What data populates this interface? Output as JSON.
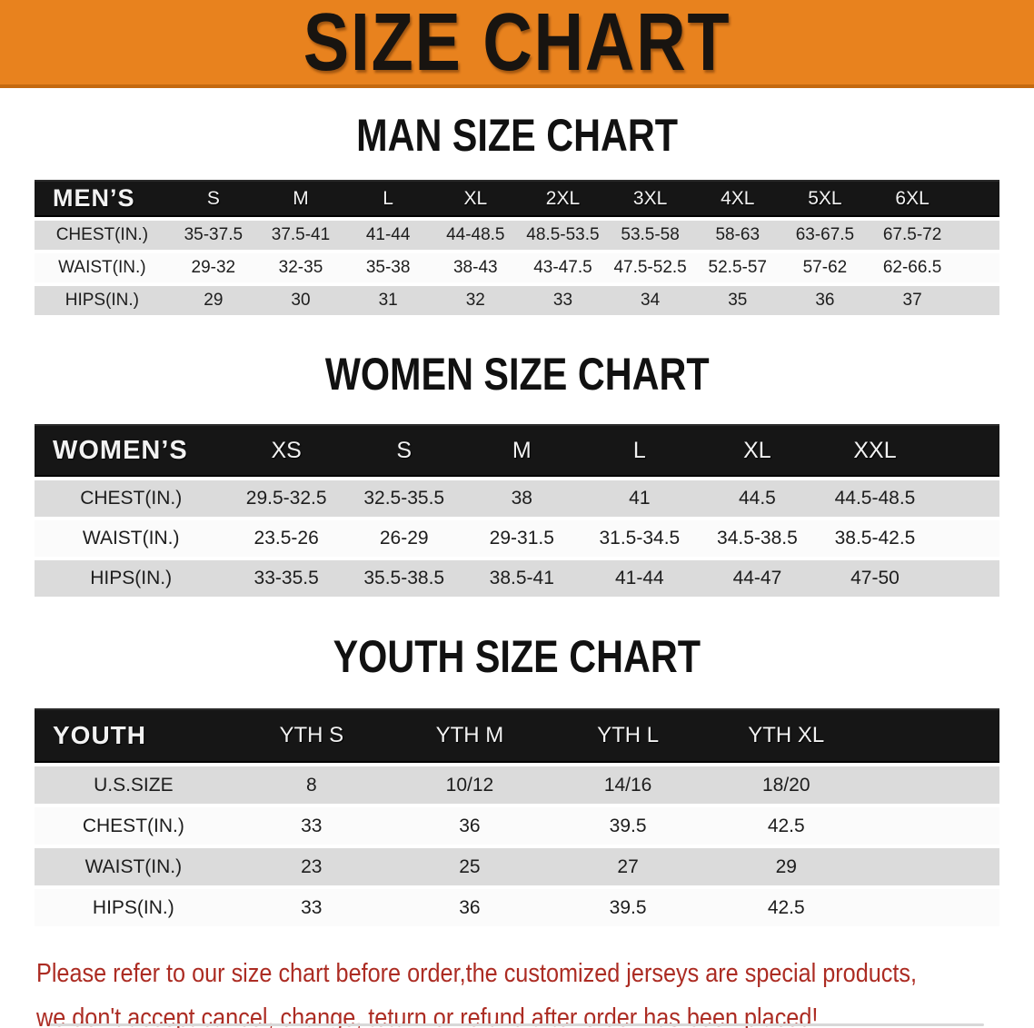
{
  "banner": {
    "title": "SIZE CHART",
    "bg_color": "#E8821E",
    "edge_color": "#C4690F"
  },
  "colors": {
    "table_header_black": "#161616",
    "row_gray": "#DBDBDB",
    "row_white": "#FBFBFB",
    "notice_red": "#AC2C23"
  },
  "sections": [
    {
      "heading": "MAN SIZE CHART",
      "corner_label": "MEN’S",
      "columns": [
        "S",
        "M",
        "L",
        "XL",
        "2XL",
        "3XL",
        "4XL",
        "5XL",
        "6XL"
      ],
      "rows": [
        {
          "label": "CHEST(IN.)",
          "values": [
            "35-37.5",
            "37.5-41",
            "41-44",
            "44-48.5",
            "48.5-53.5",
            "53.5-58",
            "58-63",
            "63-67.5",
            "67.5-72"
          ]
        },
        {
          "label": "WAIST(IN.)",
          "values": [
            "29-32",
            "32-35",
            "35-38",
            "38-43",
            "43-47.5",
            "47.5-52.5",
            "52.5-57",
            "57-62",
            "62-66.5"
          ]
        },
        {
          "label": "HIPS(IN.)",
          "values": [
            "29",
            "30",
            "31",
            "32",
            "33",
            "34",
            "35",
            "36",
            "37"
          ]
        }
      ]
    },
    {
      "heading": "WOMEN SIZE CHART",
      "corner_label": "WOMEN’S",
      "columns": [
        "XS",
        "S",
        "M",
        "L",
        "XL",
        "XXL"
      ],
      "rows": [
        {
          "label": "CHEST(IN.)",
          "values": [
            "29.5-32.5",
            "32.5-35.5",
            "38",
            "41",
            "44.5",
            "44.5-48.5"
          ]
        },
        {
          "label": "WAIST(IN.)",
          "values": [
            "23.5-26",
            "26-29",
            "29-31.5",
            "31.5-34.5",
            "34.5-38.5",
            "38.5-42.5"
          ]
        },
        {
          "label": "HIPS(IN.)",
          "values": [
            "33-35.5",
            "35.5-38.5",
            "38.5-41",
            "41-44",
            "44-47",
            "47-50"
          ]
        }
      ]
    },
    {
      "heading": "YOUTH SIZE CHART",
      "corner_label": "YOUTH",
      "columns": [
        "YTH S",
        "YTH M",
        "YTH L",
        "YTH XL"
      ],
      "rows": [
        {
          "label": "U.S.SIZE",
          "values": [
            "8",
            "10/12",
            "14/16",
            "18/20"
          ]
        },
        {
          "label": "CHEST(IN.)",
          "values": [
            "33",
            "36",
            "39.5",
            "42.5"
          ]
        },
        {
          "label": "WAIST(IN.)",
          "values": [
            "23",
            "25",
            "27",
            "29"
          ]
        },
        {
          "label": "HIPS(IN.)",
          "values": [
            "33",
            "36",
            "39.5",
            "42.5"
          ]
        }
      ]
    }
  ],
  "footer": {
    "line1": "Please refer to our size chart before order,the customized jerseys are special products,",
    "line2": "we don't accept cancel, change, teturn or refund after order has been placed!"
  }
}
